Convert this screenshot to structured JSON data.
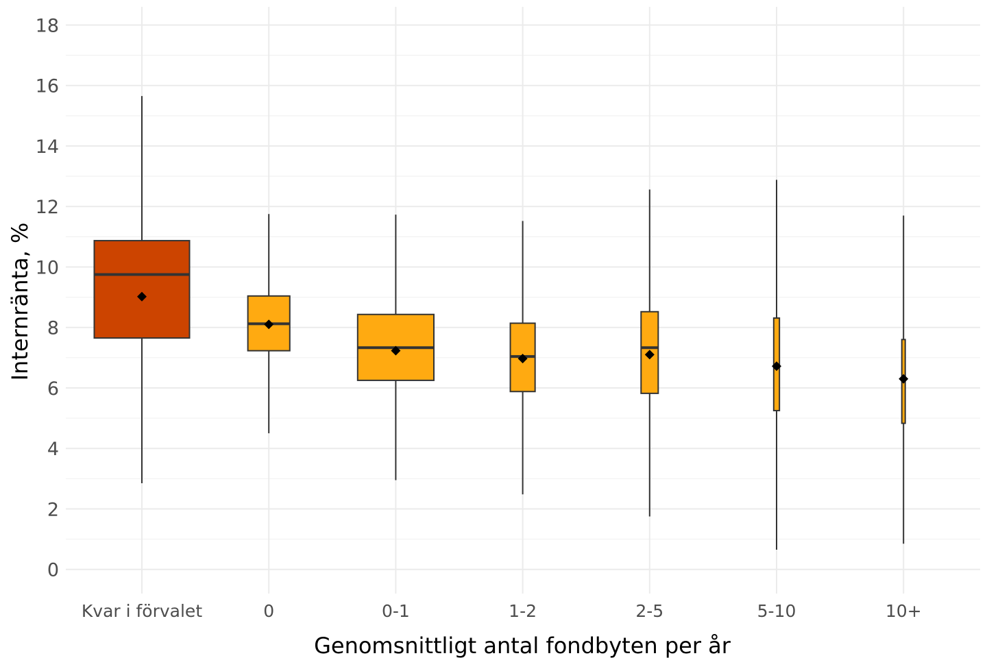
{
  "chart_data": {
    "type": "boxplot",
    "xlabel": "Genomsnittligt antal fondbyten per år",
    "ylabel": "Internränta, %",
    "ylim": [
      -0.8,
      18.6
    ],
    "yticks": [
      0,
      2,
      4,
      6,
      8,
      10,
      12,
      14,
      16,
      18
    ],
    "ytick_labels": [
      "0",
      "2",
      "4",
      "6",
      "8",
      "10",
      "12",
      "14",
      "16",
      "18"
    ],
    "grid": true,
    "categories": [
      "Kvar i förvalet",
      "0",
      "0-1",
      "1-2",
      "2-5",
      "5-10",
      "10+"
    ],
    "boxes": [
      {
        "category": "Kvar i förvalet",
        "whisker_low": 2.85,
        "q1": 7.65,
        "median": 9.75,
        "q3": 10.87,
        "whisker_high": 15.65,
        "mean": 9.02,
        "color": "#CC4400",
        "relative_width": 1.0
      },
      {
        "category": "0",
        "whisker_low": 4.5,
        "q1": 7.23,
        "median": 8.12,
        "q3": 9.04,
        "whisker_high": 11.75,
        "mean": 8.1,
        "color": "#FFAA11",
        "relative_width": 0.44
      },
      {
        "category": "0-1",
        "whisker_low": 2.95,
        "q1": 6.25,
        "median": 7.33,
        "q3": 8.43,
        "whisker_high": 11.73,
        "mean": 7.23,
        "color": "#FFAA11",
        "relative_width": 0.8
      },
      {
        "category": "1-2",
        "whisker_low": 2.48,
        "q1": 5.88,
        "median": 7.04,
        "q3": 8.14,
        "whisker_high": 11.52,
        "mean": 6.97,
        "color": "#FFAA11",
        "relative_width": 0.26
      },
      {
        "category": "2-5",
        "whisker_low": 1.75,
        "q1": 5.82,
        "median": 7.33,
        "q3": 8.52,
        "whisker_high": 12.56,
        "mean": 7.1,
        "color": "#FFAA11",
        "relative_width": 0.18
      },
      {
        "category": "5-10",
        "whisker_low": 0.65,
        "q1": 5.25,
        "median": 6.72,
        "q3": 8.31,
        "whisker_high": 12.88,
        "mean": 6.72,
        "color": "#FFAA11",
        "relative_width": 0.06
      },
      {
        "category": "10+",
        "whisker_low": 0.85,
        "q1": 4.83,
        "median": 6.3,
        "q3": 7.6,
        "whisker_high": 11.7,
        "mean": 6.3,
        "color": "#FFAA11",
        "relative_width": 0.035
      }
    ]
  }
}
